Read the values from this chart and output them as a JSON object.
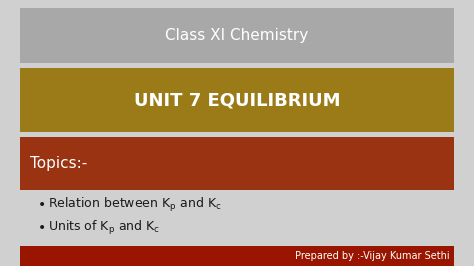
{
  "bg_color": "#d0d0d0",
  "banner1_text": "Class XI Chemistry",
  "banner1_color": "#a8a8a8",
  "banner1_text_color": "#ffffff",
  "banner1_fontsize": 11,
  "banner2_text": "UNIT 7 EQUILIBRIUM",
  "banner2_color": "#9b7a18",
  "banner2_text_color": "#ffffff",
  "banner2_fontsize": 13,
  "banner3_text": "Topics:-",
  "banner3_color": "#993312",
  "banner3_text_color": "#ffffff",
  "banner3_fontsize": 11,
  "bullet_color": "#1a1a1a",
  "bullet_fontsize": 9,
  "sub_fontsize": 6,
  "footer_text": "Prepared by :-Vijay Kumar Sethi",
  "footer_bg": "#991500",
  "footer_text_color": "#ffffff",
  "footer_fontsize": 7,
  "fig_width": 4.74,
  "fig_height": 2.66,
  "dpi": 100
}
